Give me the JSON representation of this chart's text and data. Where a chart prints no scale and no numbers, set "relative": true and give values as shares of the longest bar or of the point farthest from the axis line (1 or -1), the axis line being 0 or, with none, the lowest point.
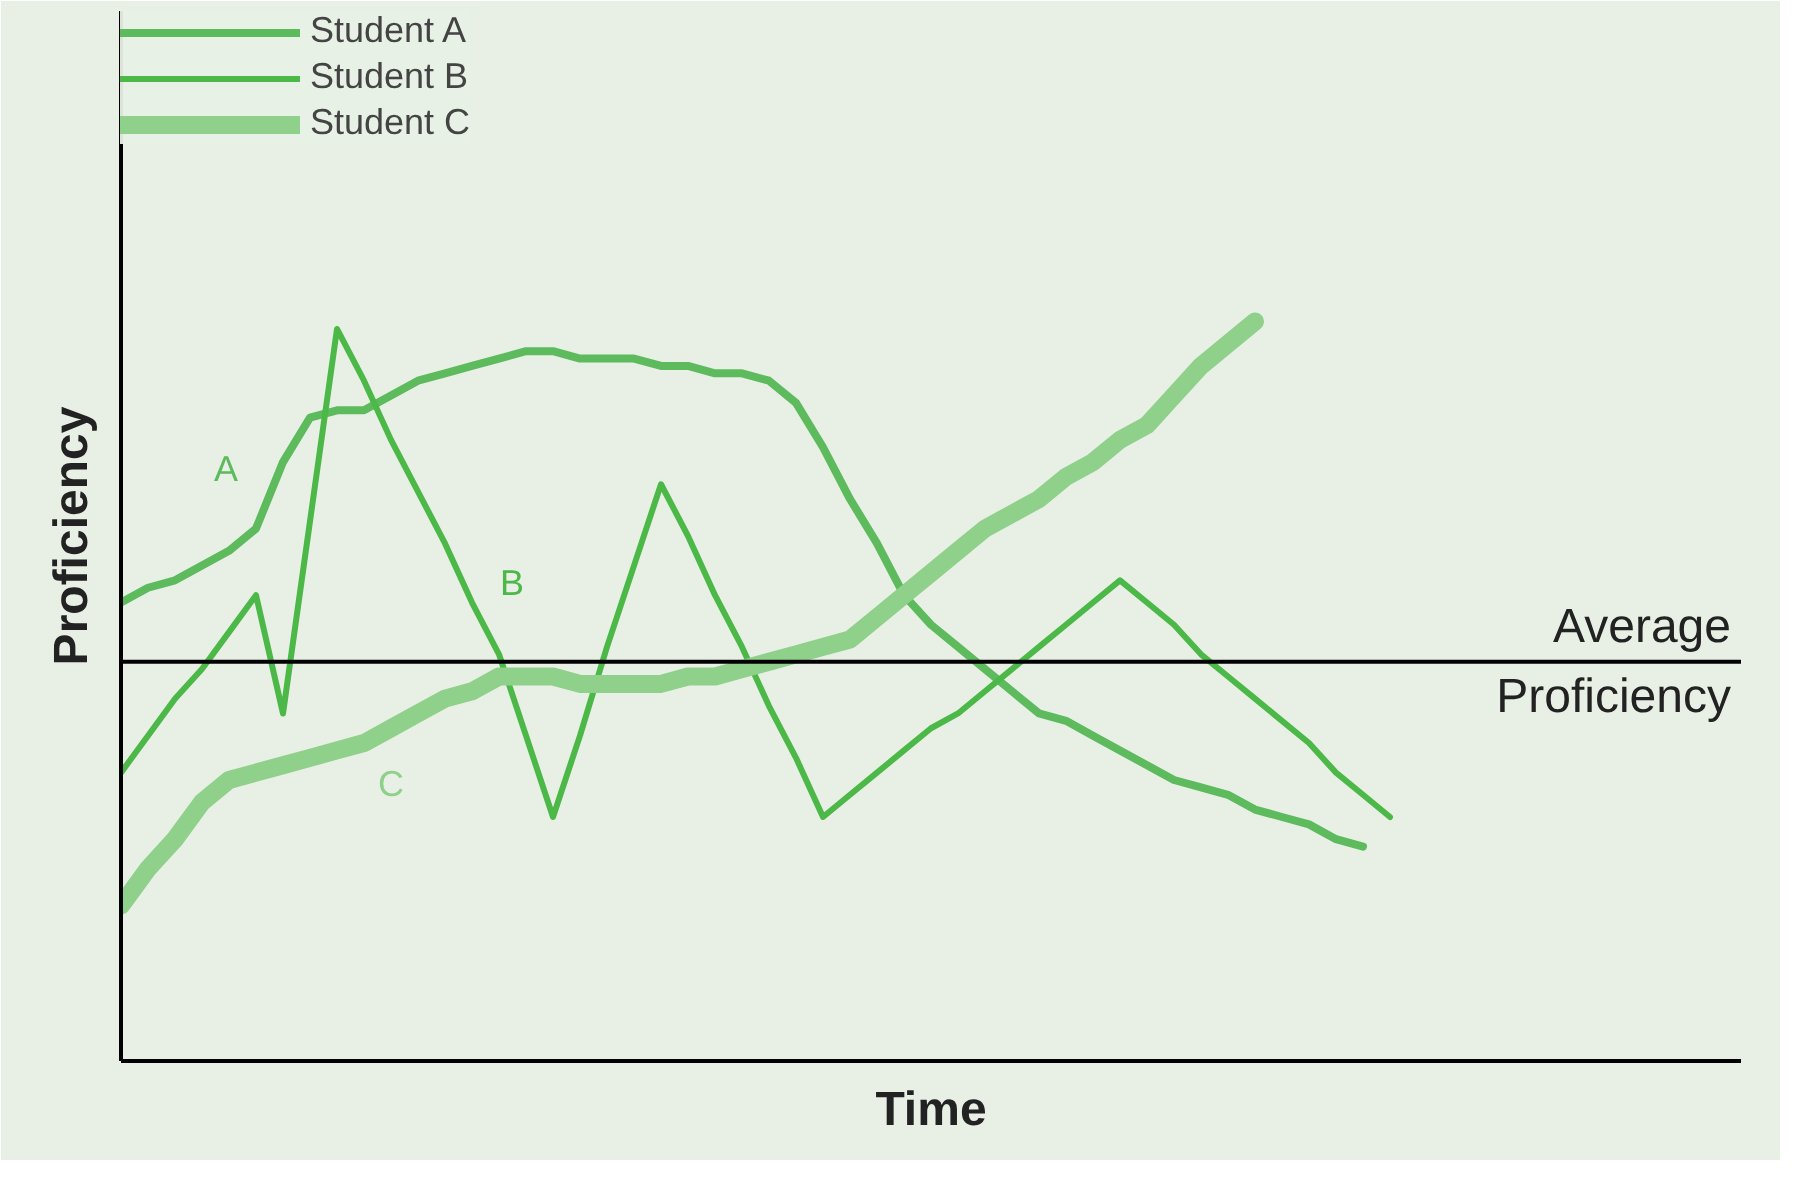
{
  "chart_data": {
    "type": "line",
    "relative": true,
    "xlabel": "Time",
    "ylabel": "Proficiency",
    "grid": false,
    "legend": "top left",
    "marker": "none",
    "line_style": "solid",
    "categories": [
      null,
      null,
      null,
      null,
      null,
      null,
      null,
      null,
      null,
      null,
      null,
      null,
      null,
      null,
      null,
      null,
      null,
      null,
      null,
      null,
      null,
      null,
      null,
      null,
      null,
      null,
      null,
      null,
      null,
      null,
      null,
      null,
      null,
      null,
      null,
      null,
      null,
      null,
      null,
      null,
      null,
      null,
      null,
      null,
      null,
      null,
      null,
      null,
      null,
      null,
      null,
      null,
      null,
      null,
      null,
      null,
      null,
      null,
      null,
      null,
      null
    ],
    "series": [
      {
        "name": "Student A",
        "color": "#5dba5d",
        "values": [
          0.62,
          0.64,
          0.65,
          0.67,
          0.69,
          0.72,
          0.81,
          0.87,
          0.88,
          0.88,
          0.9,
          0.92,
          0.93,
          0.94,
          0.95,
          0.96,
          0.96,
          0.95,
          0.95,
          0.95,
          0.94,
          0.94,
          0.93,
          0.93,
          0.92,
          0.89,
          0.83,
          0.76,
          0.7,
          0.63,
          0.59,
          0.56,
          0.53,
          0.5,
          0.47,
          0.46,
          0.44,
          0.42,
          0.4,
          0.38,
          0.37,
          0.36,
          0.34,
          0.33,
          0.32,
          0.3,
          0.29,
          null,
          null,
          null,
          null,
          null,
          null,
          null,
          null,
          null,
          null,
          null,
          null,
          null,
          null
        ]
      },
      {
        "name": "Student B",
        "color": "#4cb848",
        "values": [
          0.39,
          0.44,
          0.49,
          0.53,
          0.58,
          0.63,
          0.47,
          0.73,
          0.99,
          0.92,
          0.84,
          0.77,
          0.7,
          0.62,
          0.55,
          0.44,
          0.33,
          0.44,
          0.56,
          0.67,
          0.78,
          0.71,
          0.63,
          0.56,
          0.48,
          0.41,
          0.33,
          0.36,
          0.39,
          0.42,
          0.45,
          0.47,
          0.5,
          0.53,
          0.56,
          0.59,
          0.62,
          0.65,
          0.62,
          0.59,
          0.55,
          0.52,
          0.49,
          0.46,
          0.43,
          0.39,
          0.36,
          0.33,
          null,
          null,
          null,
          null,
          null,
          null,
          null,
          null,
          null,
          null,
          null,
          null,
          null
        ]
      },
      {
        "name": "Student C",
        "color": "#8fd08a",
        "values": [
          0.21,
          0.26,
          0.3,
          0.35,
          0.38,
          0.39,
          0.4,
          0.41,
          0.42,
          0.43,
          0.45,
          0.47,
          0.49,
          0.5,
          0.52,
          0.52,
          0.52,
          0.51,
          0.51,
          0.51,
          0.51,
          0.52,
          0.52,
          0.53,
          0.54,
          0.55,
          0.56,
          0.57,
          0.6,
          0.63,
          0.66,
          0.69,
          0.72,
          0.74,
          0.76,
          0.79,
          0.81,
          0.84,
          0.86,
          0.9,
          0.94,
          0.97,
          1.0,
          null,
          null,
          null,
          null,
          null,
          null,
          null,
          null,
          null,
          null,
          null,
          null,
          null,
          null,
          null,
          null,
          null,
          null
        ]
      }
    ],
    "ref_lines": [
      {
        "axis": "y",
        "value": 0.54,
        "label": "Average Proficiency",
        "color": "#000000"
      }
    ],
    "annotations": [
      "A",
      "B",
      "C"
    ]
  }
}
